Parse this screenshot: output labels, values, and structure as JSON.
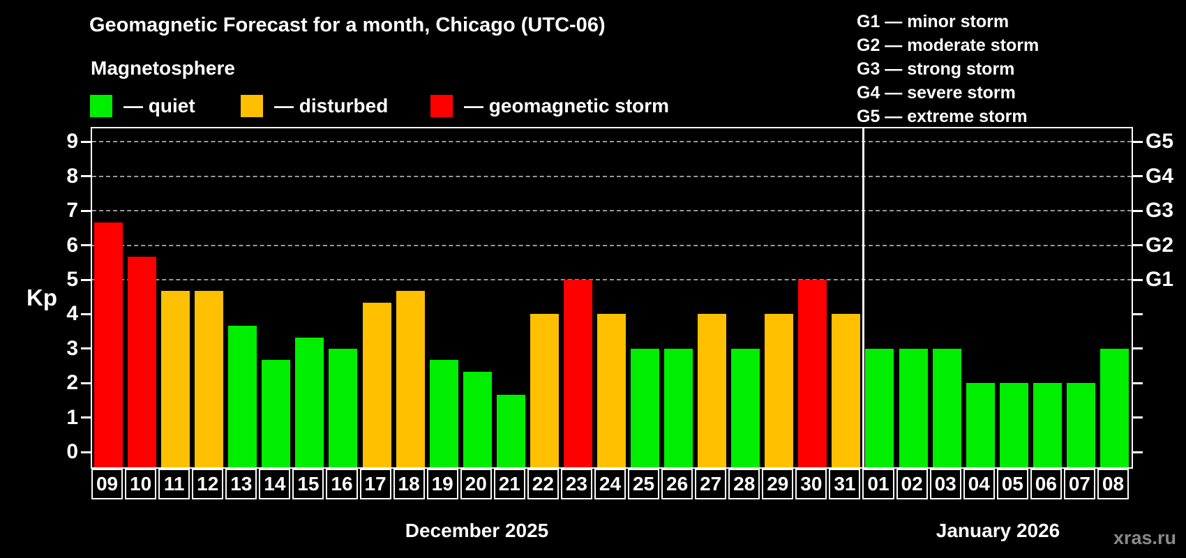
{
  "header": {
    "title": "Geomagnetic Forecast for a month, Chicago (UTC-06)",
    "subtitle": "Magnetosphere"
  },
  "legend": {
    "items": [
      {
        "label": "— quiet",
        "status": "quiet"
      },
      {
        "label": "— disturbed",
        "status": "disturbed"
      },
      {
        "label": "— geomagnetic storm",
        "status": "storm"
      }
    ]
  },
  "g_legend": [
    "G1 — minor storm",
    "G2 — moderate storm",
    "G3 — strong storm",
    "G4 — severe storm",
    "G5 — extreme storm"
  ],
  "chart_data": {
    "type": "bar",
    "ylabel": "Kp",
    "ylim": [
      0,
      9
    ],
    "y_ticks": [
      0,
      1,
      2,
      3,
      4,
      5,
      6,
      7,
      8,
      9
    ],
    "gridlines_kp": [
      5,
      6,
      7,
      8,
      9
    ],
    "grid_style": "horizontal dashed gray",
    "right_axis": [
      {
        "kp": 5,
        "label": "G1"
      },
      {
        "kp": 6,
        "label": "G2"
      },
      {
        "kp": 7,
        "label": "G3"
      },
      {
        "kp": 8,
        "label": "G4"
      },
      {
        "kp": 9,
        "label": "G5"
      }
    ],
    "status_colors": {
      "quiet": "#00ee00",
      "disturbed": "#ffc000",
      "storm": "#ff0000"
    },
    "months": [
      {
        "label": "December 2025",
        "days": 23
      },
      {
        "label": "January 2026",
        "days": 8
      }
    ],
    "bars": [
      {
        "day": "09",
        "kp": 6.67,
        "status": "storm"
      },
      {
        "day": "10",
        "kp": 5.67,
        "status": "storm"
      },
      {
        "day": "11",
        "kp": 4.67,
        "status": "disturbed"
      },
      {
        "day": "12",
        "kp": 4.67,
        "status": "disturbed"
      },
      {
        "day": "13",
        "kp": 3.67,
        "status": "quiet"
      },
      {
        "day": "14",
        "kp": 2.67,
        "status": "quiet"
      },
      {
        "day": "15",
        "kp": 3.33,
        "status": "quiet"
      },
      {
        "day": "16",
        "kp": 3.0,
        "status": "quiet"
      },
      {
        "day": "17",
        "kp": 4.33,
        "status": "disturbed"
      },
      {
        "day": "18",
        "kp": 4.67,
        "status": "disturbed"
      },
      {
        "day": "19",
        "kp": 2.67,
        "status": "quiet"
      },
      {
        "day": "20",
        "kp": 2.33,
        "status": "quiet"
      },
      {
        "day": "21",
        "kp": 1.67,
        "status": "quiet"
      },
      {
        "day": "22",
        "kp": 4.0,
        "status": "disturbed"
      },
      {
        "day": "23",
        "kp": 5.0,
        "status": "storm"
      },
      {
        "day": "24",
        "kp": 4.0,
        "status": "disturbed"
      },
      {
        "day": "25",
        "kp": 3.0,
        "status": "quiet"
      },
      {
        "day": "26",
        "kp": 3.0,
        "status": "quiet"
      },
      {
        "day": "27",
        "kp": 4.0,
        "status": "disturbed"
      },
      {
        "day": "28",
        "kp": 3.0,
        "status": "quiet"
      },
      {
        "day": "29",
        "kp": 4.0,
        "status": "disturbed"
      },
      {
        "day": "30",
        "kp": 5.0,
        "status": "storm"
      },
      {
        "day": "31",
        "kp": 4.0,
        "status": "disturbed"
      },
      {
        "day": "01",
        "kp": 3.0,
        "status": "quiet"
      },
      {
        "day": "02",
        "kp": 3.0,
        "status": "quiet"
      },
      {
        "day": "03",
        "kp": 3.0,
        "status": "quiet"
      },
      {
        "day": "04",
        "kp": 2.0,
        "status": "quiet"
      },
      {
        "day": "05",
        "kp": 2.0,
        "status": "quiet"
      },
      {
        "day": "06",
        "kp": 2.0,
        "status": "quiet"
      },
      {
        "day": "07",
        "kp": 2.0,
        "status": "quiet"
      },
      {
        "day": "08",
        "kp": 3.0,
        "status": "quiet"
      }
    ]
  },
  "watermark": "xras.ru"
}
